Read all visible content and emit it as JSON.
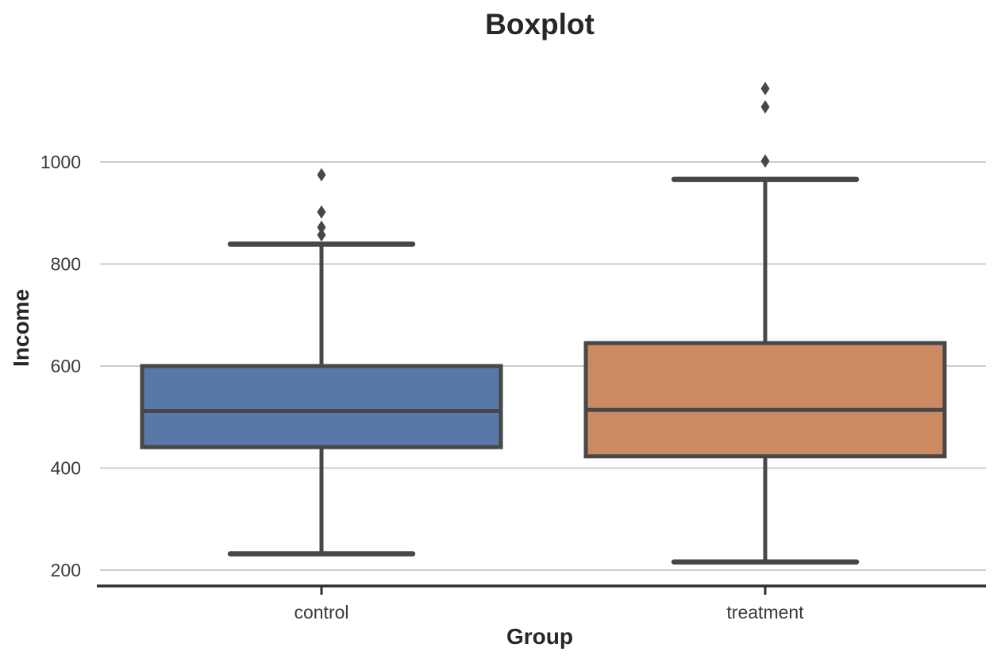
{
  "title": "Boxplot",
  "colors": {
    "grid": "#cccccc",
    "axis_line": "#2e2e2e",
    "box_edge": "#474747",
    "tick_text": "#3a3a3a",
    "title_text": "#262626",
    "control_fill": "#5878A8",
    "treatment_fill": "#CC8A62"
  },
  "chart_data": {
    "type": "boxplot",
    "title": "Boxplot",
    "xlabel": "Group",
    "ylabel": "Income",
    "categories": [
      "control",
      "treatment"
    ],
    "y_ticks": [
      200,
      400,
      600,
      800,
      1000
    ],
    "ylim": [
      170,
      1200
    ],
    "grid": true,
    "legend": false,
    "series": [
      {
        "name": "control",
        "whisker_low": 232,
        "q1": 441,
        "median": 512,
        "q3": 600,
        "whisker_high": 839,
        "outliers": [
          857,
          872,
          902,
          975
        ],
        "fill_color": "#5878A8"
      },
      {
        "name": "treatment",
        "whisker_low": 216,
        "q1": 423,
        "median": 514,
        "q3": 645,
        "whisker_high": 966,
        "outliers": [
          1002,
          1108,
          1144
        ],
        "fill_color": "#CC8A62"
      }
    ]
  }
}
